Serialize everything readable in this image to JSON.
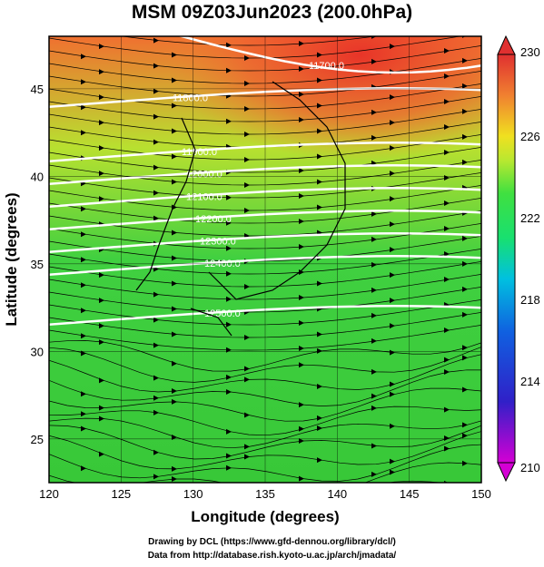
{
  "header": {
    "title": "MSM 09Z03Jun2023 (200.0hPa)"
  },
  "axes": {
    "x_label": "Longitude (degrees)",
    "y_label": "Latitude  (degrees)",
    "x_ticks": [
      "120",
      "125",
      "130",
      "135",
      "140",
      "145",
      "150"
    ],
    "y_ticks": [
      "25",
      "30",
      "35",
      "40",
      "45"
    ]
  },
  "colorbar": {
    "ticks": [
      "230",
      "226",
      "222",
      "218",
      "214",
      "210"
    ],
    "colors": [
      "#d400d4",
      "#1030d0",
      "#00b8e8",
      "#18e070",
      "#b8e830",
      "#f0e020",
      "#f08030",
      "#e03030"
    ]
  },
  "contours": {
    "labels": [
      "11700.0",
      "11800.0",
      "11900.0",
      "12000.0",
      "12100.0",
      "12200.0",
      "12300.0",
      "12400.0",
      "12500.0"
    ]
  },
  "footer": {
    "credit_line1": "Drawing by DCL (https://www.gfd-dennou.org/library/dcl/)",
    "credit_line2": "Data from http://database.rish.kyoto-u.ac.jp/arch/jmadata/"
  }
}
